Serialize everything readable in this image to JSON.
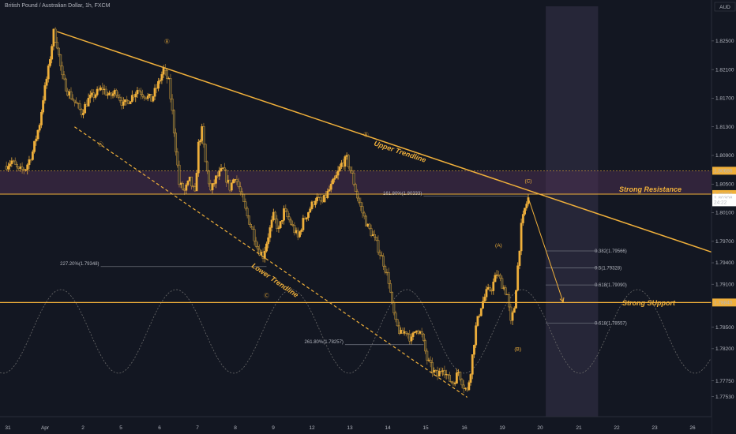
{
  "title": "British Pound / Australian Dollar, 1h, FXCM",
  "currency_label": "AUD",
  "colors": {
    "background": "#131722",
    "up_candle": "#f0b03b",
    "down_candle": "#3a3a2e",
    "trendline": "#f0b03b",
    "resistance_band": "#4a3050",
    "projection_zone": "#262638",
    "current_price_bg": "#ffffff"
  },
  "chart_data": {
    "type": "candlestick",
    "symbol": "GBPAUD",
    "interval": "1h",
    "ylim": [
      1.7725,
      1.8305
    ],
    "x_ticks": [
      "31",
      "Apr",
      "2",
      "5",
      "6",
      "7",
      "8",
      "9",
      "12",
      "13",
      "14",
      "15",
      "16",
      "19",
      "20",
      "21",
      "22",
      "23",
      "26"
    ],
    "y_ticks": [
      "1.82500",
      "1.82100",
      "1.81700",
      "1.81300",
      "1.80900",
      "1.80500",
      "1.80100",
      "1.79700",
      "1.79400",
      "1.79100",
      "1.78500",
      "1.78200",
      "1.77750",
      "1.77530"
    ],
    "price_tags": [
      {
        "label": "1.80686",
        "value": 1.80686,
        "style": "line"
      },
      {
        "label": "1.80360",
        "value": 1.8036,
        "style": "line"
      },
      {
        "label": "1.80308",
        "value": 1.80308,
        "style": "current"
      },
      {
        "label": "24:22",
        "value": 1.80245,
        "style": "countdown"
      },
      {
        "label": "1.78845",
        "value": 1.78845,
        "style": "line"
      }
    ],
    "price_path": [
      [
        0,
        1.8075
      ],
      [
        0.4,
        1.8082
      ],
      [
        0.8,
        1.8068
      ],
      [
        1.2,
        1.8072
      ],
      [
        1.6,
        1.8095
      ],
      [
        2.0,
        1.8135
      ],
      [
        2.2,
        1.817
      ],
      [
        2.5,
        1.821
      ],
      [
        2.8,
        1.8262
      ],
      [
        3.0,
        1.8245
      ],
      [
        3.3,
        1.8198
      ],
      [
        3.6,
        1.818
      ],
      [
        4.0,
        1.8165
      ],
      [
        4.4,
        1.815
      ],
      [
        4.8,
        1.8168
      ],
      [
        5.2,
        1.8176
      ],
      [
        5.6,
        1.8184
      ],
      [
        6.0,
        1.8172
      ],
      [
        6.4,
        1.818
      ],
      [
        6.8,
        1.816
      ],
      [
        7.2,
        1.817
      ],
      [
        7.6,
        1.8182
      ],
      [
        8.0,
        1.8175
      ],
      [
        8.4,
        1.8168
      ],
      [
        8.8,
        1.819
      ],
      [
        9.1,
        1.821
      ],
      [
        9.4,
        1.8192
      ],
      [
        9.6,
        1.815
      ],
      [
        9.8,
        1.81
      ],
      [
        10.0,
        1.805
      ],
      [
        10.3,
        1.804
      ],
      [
        10.6,
        1.8055
      ],
      [
        10.9,
        1.8035
      ],
      [
        11.1,
        1.8105
      ],
      [
        11.3,
        1.8125
      ],
      [
        11.5,
        1.808
      ],
      [
        11.8,
        1.804
      ],
      [
        12.1,
        1.8058
      ],
      [
        12.5,
        1.807
      ],
      [
        12.9,
        1.8045
      ],
      [
        13.2,
        1.8062
      ],
      [
        13.6,
        1.803
      ],
      [
        13.9,
        1.8005
      ],
      [
        14.2,
        1.7985
      ],
      [
        14.5,
        1.796
      ],
      [
        14.8,
        1.795
      ],
      [
        15.1,
        1.7978
      ],
      [
        15.4,
        1.8005
      ],
      [
        15.7,
        1.7985
      ],
      [
        16.0,
        1.8012
      ],
      [
        16.4,
        1.7995
      ],
      [
        16.8,
        1.7975
      ],
      [
        17.1,
        1.7998
      ],
      [
        17.4,
        1.8012
      ],
      [
        17.8,
        1.803
      ],
      [
        18.2,
        1.8024
      ],
      [
        18.6,
        1.8042
      ],
      [
        19.0,
        1.806
      ],
      [
        19.3,
        1.8078
      ],
      [
        19.6,
        1.8085
      ],
      [
        19.9,
        1.8062
      ],
      [
        20.2,
        1.8032
      ],
      [
        20.5,
        1.801
      ],
      [
        20.8,
        1.799
      ],
      [
        21.1,
        1.7978
      ],
      [
        21.4,
        1.796
      ],
      [
        21.7,
        1.794
      ],
      [
        22.0,
        1.7915
      ],
      [
        22.2,
        1.788
      ],
      [
        22.4,
        1.7855
      ],
      [
        22.7,
        1.784
      ],
      [
        23.0,
        1.7845
      ],
      [
        23.3,
        1.7832
      ],
      [
        23.6,
        1.785
      ],
      [
        23.9,
        1.7838
      ],
      [
        24.2,
        1.7805
      ],
      [
        24.5,
        1.779
      ],
      [
        24.8,
        1.7782
      ],
      [
        25.1,
        1.7795
      ],
      [
        25.4,
        1.7778
      ],
      [
        25.7,
        1.7772
      ],
      [
        26.0,
        1.7788
      ],
      [
        26.3,
        1.7768
      ],
      [
        26.5,
        1.776
      ],
      [
        26.7,
        1.779
      ],
      [
        27.0,
        1.785
      ],
      [
        27.3,
        1.788
      ],
      [
        27.6,
        1.7898
      ],
      [
        27.9,
        1.7905
      ],
      [
        28.2,
        1.7925
      ],
      [
        28.5,
        1.791
      ],
      [
        28.8,
        1.7895
      ],
      [
        29.0,
        1.7855
      ],
      [
        29.2,
        1.7878
      ],
      [
        29.4,
        1.7935
      ],
      [
        29.6,
        1.799
      ],
      [
        29.8,
        1.8015
      ],
      [
        30.0,
        1.803
      ]
    ],
    "upper_trendline": [
      [
        3.0,
        1.8263
      ],
      [
        40.5,
        1.7955
      ]
    ],
    "lower_trendline": [
      [
        4.0,
        1.813
      ],
      [
        26.5,
        1.7752
      ]
    ],
    "strong_resistance": {
      "from": 1.8036,
      "to": 1.80686
    },
    "strong_support": 1.78845,
    "projection_zone": {
      "x_from": 31.0,
      "x_to": 34.0
    },
    "projection_arrow": {
      "from": [
        30.0,
        1.80308
      ],
      "to": [
        32.0,
        1.7885
      ]
    },
    "fib_levels": [
      {
        "label": "0.382(1.79566)",
        "value": 1.79566,
        "x_from": 31.0,
        "x_to": 34.0
      },
      {
        "label": "0.5(1.79328)",
        "value": 1.79328,
        "x_from": 31.0,
        "x_to": 34.0
      },
      {
        "label": "0.618(1.79090)",
        "value": 1.7909,
        "x_from": 31.0,
        "x_to": 34.0
      },
      {
        "label": "0.618(1.78557)",
        "value": 1.78557,
        "x_from": 31.0,
        "x_to": 34.0
      }
    ],
    "fib_extensions": [
      {
        "label": "161.80%(1.80333)",
        "value": 1.80333,
        "x_from": 24.0,
        "x_to": 30.0
      },
      {
        "label": "227.20%(1.79348)",
        "value": 1.79348,
        "x_from": 5.5,
        "x_to": 15.0
      },
      {
        "label": "261.80%(1.78257)",
        "value": 1.78257,
        "x_from": 19.5,
        "x_to": 24.0
      }
    ],
    "labels": {
      "upper_trendline": "Upper Trendline",
      "lower_trendline": "Lower Trendline",
      "strong_resistance": "Strong Resistance",
      "strong_support": "Strong SUpport"
    },
    "wave_labels": [
      {
        "text": "Ⓑ",
        "x": 9.3,
        "y": 1.8247
      },
      {
        "text": "Ⓐ",
        "x": 5.5,
        "y": 1.8103
      },
      {
        "text": "Ⓑ",
        "x": 20.7,
        "y": 1.8117
      },
      {
        "text": "Ⓒ",
        "x": 15.0,
        "y": 1.7892
      },
      {
        "text": "(C)",
        "x": 30.0,
        "y": 1.8052
      },
      {
        "text": "(A)",
        "x": 28.3,
        "y": 1.7962
      },
      {
        "text": "(B)",
        "x": 29.4,
        "y": 1.7817
      }
    ],
    "grid": false,
    "legend": "none"
  }
}
